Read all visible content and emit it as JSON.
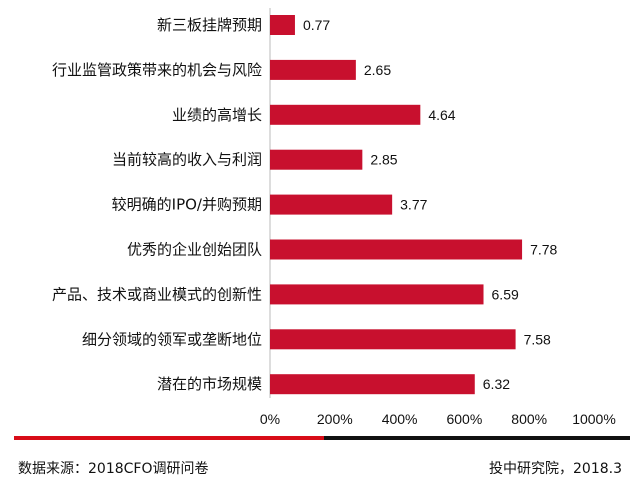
{
  "chart_data": {
    "type": "bar",
    "orientation": "horizontal",
    "categories": [
      "新三板挂牌预期",
      "行业监管政策带来的机会与风险",
      "业绩的高增长",
      "当前较高的收入与利润",
      "较明确的IPO/并购预期",
      "优秀的企业创始团队",
      "产品、技术或商业模式的创新性",
      "细分领域的领军或垄断地位",
      "潜在的市场规模"
    ],
    "values": [
      0.77,
      2.65,
      4.64,
      2.85,
      3.77,
      7.78,
      6.59,
      7.58,
      6.32
    ],
    "value_labels": [
      "0.77",
      "2.65",
      "4.64",
      "2.85",
      "3.77",
      "7.78",
      "6.59",
      "7.58",
      "6.32"
    ],
    "xticks": [
      "0%",
      "200%",
      "400%",
      "600%",
      "800%",
      "1000%"
    ],
    "xlim": [
      0,
      10
    ],
    "title": "",
    "xlabel": "",
    "ylabel": "",
    "bar_color": "#c8102e",
    "grid": false
  },
  "footer": {
    "source": "数据来源：2018CFO调研问卷",
    "org": "投中研究院，2018.3"
  },
  "colors": {
    "divider_red": "#d80c18",
    "divider_black": "#111111"
  }
}
